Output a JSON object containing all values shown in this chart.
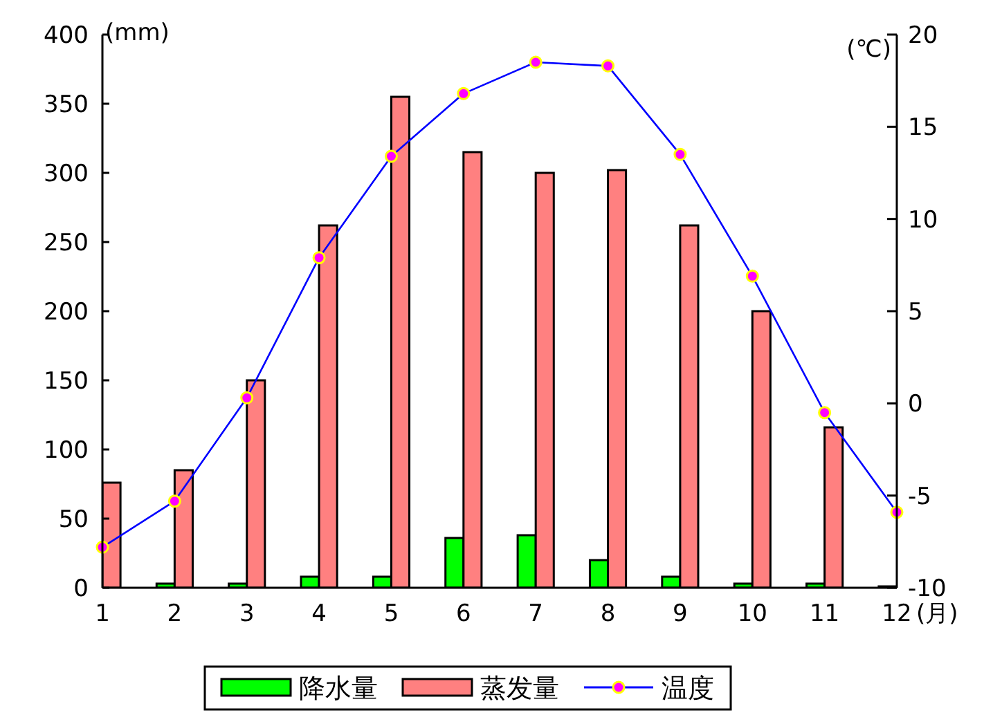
{
  "chart_data": {
    "type": "bar",
    "xlabel": "(月)",
    "ylabel": "(mm)",
    "y2label": "(℃)",
    "x": [
      1,
      2,
      3,
      4,
      5,
      6,
      7,
      8,
      9,
      10,
      11,
      12
    ],
    "xlim": [
      1,
      12
    ],
    "xticks": [
      1,
      2,
      3,
      4,
      5,
      6,
      7,
      8,
      9,
      10,
      11,
      12
    ],
    "ylim": [
      0,
      400
    ],
    "yticks": [
      0,
      50,
      100,
      150,
      200,
      250,
      300,
      350,
      400
    ],
    "y2lim": [
      -10,
      20
    ],
    "y2ticks": [
      -10,
      -5,
      0,
      5,
      10,
      15,
      20
    ],
    "series": [
      {
        "name": "降水量",
        "color": "#00ff00",
        "values": [
          0,
          3,
          3,
          8,
          8,
          36,
          38,
          20,
          8,
          3,
          3,
          1
        ]
      },
      {
        "name": "蒸发量",
        "color": "#ff8080",
        "values": [
          76,
          85,
          150,
          262,
          355,
          315,
          300,
          302,
          262,
          200,
          116,
          null
        ]
      },
      {
        "name": "温度",
        "type": "line",
        "axis": "y2",
        "color": "#0000ff",
        "marker": "circle",
        "values": [
          -7.8,
          -5.3,
          0.3,
          7.9,
          13.4,
          16.8,
          18.5,
          18.3,
          13.5,
          6.9,
          -0.5,
          -5.9
        ]
      }
    ],
    "legend": "bottom",
    "grid": false
  }
}
